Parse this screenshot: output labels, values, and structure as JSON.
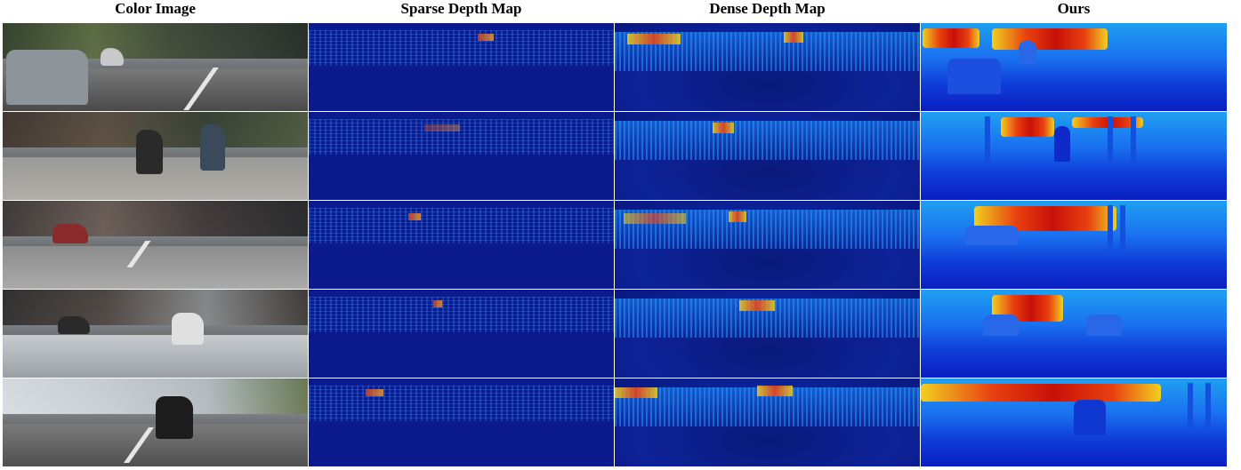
{
  "headers": {
    "color_image": "Color Image",
    "sparse_depth": "Sparse Depth Map",
    "dense_depth": "Dense Depth Map",
    "ours": "Ours"
  },
  "rows": 5,
  "colors": {
    "background": "#ffffff",
    "depth_far": "#c81008",
    "depth_mid": "#f0d020",
    "depth_near": "#0a1ec0"
  }
}
